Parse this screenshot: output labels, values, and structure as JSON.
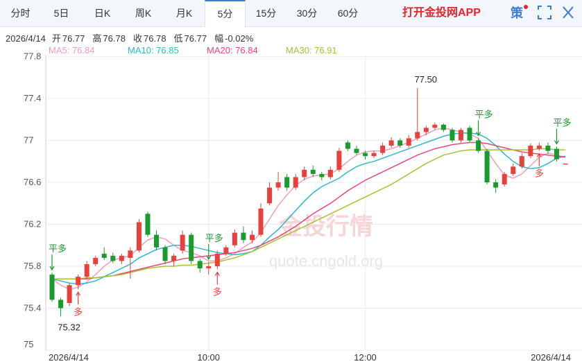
{
  "tabs": [
    "分时",
    "5日",
    "日K",
    "周K",
    "月K",
    "5分",
    "15分",
    "30分",
    "60分"
  ],
  "active_tab": 5,
  "app_link": "打开金投网APP",
  "strategy_button": "策",
  "info": {
    "date": "2026/4/14",
    "fields": [
      {
        "label": "开",
        "value": "76.77"
      },
      {
        "label": "高",
        "value": "76.78"
      },
      {
        "label": "收",
        "value": "76.78"
      },
      {
        "label": "低",
        "value": "76.77"
      },
      {
        "label": "幅",
        "value": "-0.02%"
      }
    ]
  },
  "watermark": {
    "logo": "金投行情",
    "url": "quote.cngold.org"
  },
  "chart_data": {
    "type": "candlestick",
    "up_color": "#e8413c",
    "down_color": "#1a9b2d",
    "ylim": [
      75,
      77.81
    ],
    "yticks": [
      75,
      75.4,
      75.8,
      76.2,
      76.6,
      77,
      77.4,
      77.8
    ],
    "grid": true,
    "categories": [
      "2026/4/14",
      null,
      null,
      null,
      null,
      null,
      null,
      null,
      null,
      null,
      null,
      null,
      null,
      null,
      null,
      null,
      null,
      null,
      "10:00",
      null,
      null,
      null,
      null,
      null,
      null,
      null,
      null,
      null,
      null,
      null,
      null,
      null,
      null,
      null,
      null,
      null,
      "12:00",
      null,
      null,
      null,
      null,
      null,
      null,
      null,
      null,
      null,
      null,
      null,
      null,
      null,
      null,
      null,
      null,
      null,
      null,
      null,
      null,
      null,
      null,
      "2026/4/14"
    ],
    "candles": [
      [
        75.72,
        75.74,
        75.46,
        75.48
      ],
      [
        75.48,
        75.5,
        75.32,
        75.4
      ],
      [
        75.45,
        75.64,
        75.42,
        75.62
      ],
      [
        75.62,
        75.72,
        75.58,
        75.7
      ],
      [
        75.7,
        75.85,
        75.68,
        75.82
      ],
      [
        75.82,
        75.9,
        75.8,
        75.88
      ],
      [
        75.92,
        75.98,
        75.86,
        75.88
      ],
      [
        75.9,
        75.93,
        75.83,
        75.85
      ],
      [
        75.85,
        75.92,
        75.82,
        75.9
      ],
      [
        75.88,
        75.98,
        75.68,
        75.95
      ],
      [
        75.95,
        76.25,
        75.93,
        76.22
      ],
      [
        76.3,
        76.32,
        76.08,
        76.1
      ],
      [
        76.1,
        76.14,
        75.95,
        75.98
      ],
      [
        75.98,
        76.0,
        75.82,
        75.85
      ],
      [
        75.85,
        75.92,
        75.8,
        75.9
      ],
      [
        75.95,
        76.14,
        75.92,
        76.1
      ],
      [
        76.1,
        76.12,
        75.82,
        75.85
      ],
      [
        75.85,
        75.87,
        75.74,
        75.78
      ],
      [
        75.78,
        75.84,
        75.72,
        75.8
      ],
      [
        75.8,
        75.95,
        75.77,
        75.92
      ],
      [
        75.92,
        76.0,
        75.9,
        75.98
      ],
      [
        76.0,
        76.15,
        75.98,
        76.12
      ],
      [
        76.12,
        76.18,
        76.02,
        76.05
      ],
      [
        76.05,
        76.14,
        76.02,
        76.1
      ],
      [
        76.1,
        76.4,
        76.08,
        76.35
      ],
      [
        76.4,
        76.6,
        76.38,
        76.55
      ],
      [
        76.55,
        76.7,
        76.52,
        76.6
      ],
      [
        76.65,
        76.68,
        76.52,
        76.55
      ],
      [
        76.55,
        76.68,
        76.53,
        76.65
      ],
      [
        76.65,
        76.75,
        76.62,
        76.72
      ],
      [
        76.72,
        76.76,
        76.65,
        76.68
      ],
      [
        76.68,
        76.7,
        76.62,
        76.65
      ],
      [
        76.65,
        76.75,
        76.63,
        76.72
      ],
      [
        76.72,
        76.93,
        76.7,
        76.9
      ],
      [
        76.98,
        77.0,
        76.9,
        76.92
      ],
      [
        76.92,
        76.95,
        76.86,
        76.88
      ],
      [
        76.88,
        76.9,
        76.82,
        76.85
      ],
      [
        76.85,
        76.9,
        76.83,
        76.88
      ],
      [
        76.88,
        76.98,
        76.86,
        76.95
      ],
      [
        76.95,
        77.03,
        76.93,
        77.0
      ],
      [
        77.0,
        77.02,
        76.93,
        76.95
      ],
      [
        76.95,
        77.05,
        76.93,
        77.02
      ],
      [
        77.02,
        77.5,
        77.0,
        77.08
      ],
      [
        77.08,
        77.14,
        77.05,
        77.12
      ],
      [
        77.12,
        77.17,
        77.1,
        77.15
      ],
      [
        77.15,
        77.16,
        77.08,
        77.1
      ],
      [
        77.1,
        77.12,
        76.98,
        77.0
      ],
      [
        77.0,
        77.12,
        76.98,
        77.1
      ],
      [
        77.12,
        77.14,
        76.98,
        77.0
      ],
      [
        77.0,
        77.02,
        76.88,
        76.9
      ],
      [
        76.9,
        76.92,
        76.58,
        76.6
      ],
      [
        76.6,
        76.63,
        76.5,
        76.55
      ],
      [
        76.58,
        76.7,
        76.56,
        76.68
      ],
      [
        76.68,
        76.78,
        76.66,
        76.75
      ],
      [
        76.75,
        76.88,
        76.73,
        76.85
      ],
      [
        76.85,
        76.97,
        76.83,
        76.95
      ],
      [
        76.92,
        76.98,
        76.9,
        76.95
      ],
      [
        76.95,
        76.98,
        76.87,
        76.9
      ],
      [
        76.92,
        76.94,
        76.8,
        76.82
      ],
      [
        76.77,
        76.78,
        76.77,
        76.78
      ]
    ],
    "series": [
      {
        "name": "MA5",
        "legend": "MA5: 76.84",
        "color": "#f29cbf",
        "values": [
          75.68,
          75.62,
          75.58,
          75.6,
          75.65,
          75.72,
          75.8,
          75.86,
          75.88,
          75.9,
          75.98,
          76.05,
          76.08,
          76.06,
          76.0,
          75.95,
          75.93,
          75.9,
          75.85,
          75.85,
          75.88,
          75.92,
          75.98,
          76.03,
          76.12,
          76.25,
          76.38,
          76.48,
          76.57,
          76.63,
          76.66,
          76.67,
          76.68,
          76.73,
          76.8,
          76.86,
          76.89,
          76.9,
          76.9,
          76.92,
          76.95,
          76.98,
          77.02,
          77.06,
          77.1,
          77.12,
          77.1,
          77.08,
          77.06,
          77.02,
          76.9,
          76.78,
          76.67,
          76.64,
          76.68,
          76.76,
          76.84,
          76.88,
          76.86,
          76.84
        ]
      },
      {
        "name": "MA10",
        "legend": "MA10: 76.85",
        "color": "#29b8d1",
        "values": [
          75.68,
          75.66,
          75.64,
          75.63,
          75.64,
          75.66,
          75.7,
          75.74,
          75.78,
          75.82,
          75.88,
          75.92,
          75.96,
          75.98,
          76.0,
          76.0,
          75.99,
          75.97,
          75.95,
          75.93,
          75.92,
          75.91,
          75.92,
          75.94,
          76.0,
          76.08,
          76.15,
          76.24,
          76.33,
          76.42,
          76.5,
          76.56,
          76.6,
          76.64,
          76.7,
          76.75,
          76.78,
          76.8,
          76.83,
          76.86,
          76.89,
          76.92,
          76.95,
          76.98,
          77.01,
          77.04,
          77.06,
          77.07,
          77.07,
          77.06,
          77.02,
          76.95,
          76.87,
          76.8,
          76.75,
          76.73,
          76.74,
          76.78,
          76.83,
          76.85
        ]
      },
      {
        "name": "MA20",
        "legend": "MA20: 76.84",
        "color": "#e4487a",
        "values": [
          75.68,
          75.68,
          75.68,
          75.68,
          75.68,
          75.69,
          75.7,
          75.71,
          75.73,
          75.75,
          75.77,
          75.79,
          75.81,
          75.83,
          75.85,
          75.87,
          75.88,
          75.89,
          75.9,
          75.91,
          75.92,
          75.93,
          75.95,
          75.97,
          76.0,
          76.04,
          76.08,
          76.13,
          76.18,
          76.24,
          76.3,
          76.35,
          76.4,
          76.46,
          76.52,
          76.57,
          76.62,
          76.66,
          76.7,
          76.74,
          76.78,
          76.82,
          76.86,
          76.89,
          76.92,
          76.94,
          76.96,
          76.97,
          76.98,
          76.98,
          76.97,
          76.95,
          76.93,
          76.91,
          76.89,
          76.88,
          76.87,
          76.86,
          76.85,
          76.84
        ]
      },
      {
        "name": "MA30",
        "legend": "MA30: 76.91",
        "color": "#a8c130",
        "values": [
          75.68,
          75.68,
          75.68,
          75.68,
          75.69,
          75.69,
          75.7,
          75.71,
          75.72,
          75.74,
          75.76,
          75.78,
          75.79,
          75.8,
          75.8,
          75.81,
          75.81,
          75.82,
          75.83,
          75.84,
          75.86,
          75.88,
          75.91,
          75.94,
          75.98,
          76.02,
          76.06,
          76.1,
          76.14,
          76.18,
          76.22,
          76.26,
          76.3,
          76.34,
          76.38,
          76.42,
          76.46,
          76.5,
          76.54,
          76.58,
          76.63,
          76.68,
          76.73,
          76.78,
          76.82,
          76.86,
          76.88,
          76.9,
          76.91,
          76.91,
          76.91,
          76.91,
          76.91,
          76.91,
          76.91,
          76.91,
          76.92,
          76.92,
          76.91,
          76.91
        ]
      }
    ],
    "extremes": [
      {
        "index": 42,
        "label": "77.50",
        "side": "above"
      },
      {
        "index": 1,
        "label": "75.32",
        "side": "below"
      }
    ],
    "annotations": [
      {
        "text": "平多",
        "index": 0,
        "side": "above"
      },
      {
        "text": "多",
        "index": 3,
        "side": "below"
      },
      {
        "text": "平多",
        "index": 18,
        "side": "above"
      },
      {
        "text": "多",
        "index": 19,
        "side": "below"
      },
      {
        "text": "平多",
        "index": 49,
        "side": "above"
      },
      {
        "text": "多",
        "index": 56,
        "side": "below"
      },
      {
        "text": "平多",
        "index": 58,
        "side": "above"
      }
    ]
  }
}
